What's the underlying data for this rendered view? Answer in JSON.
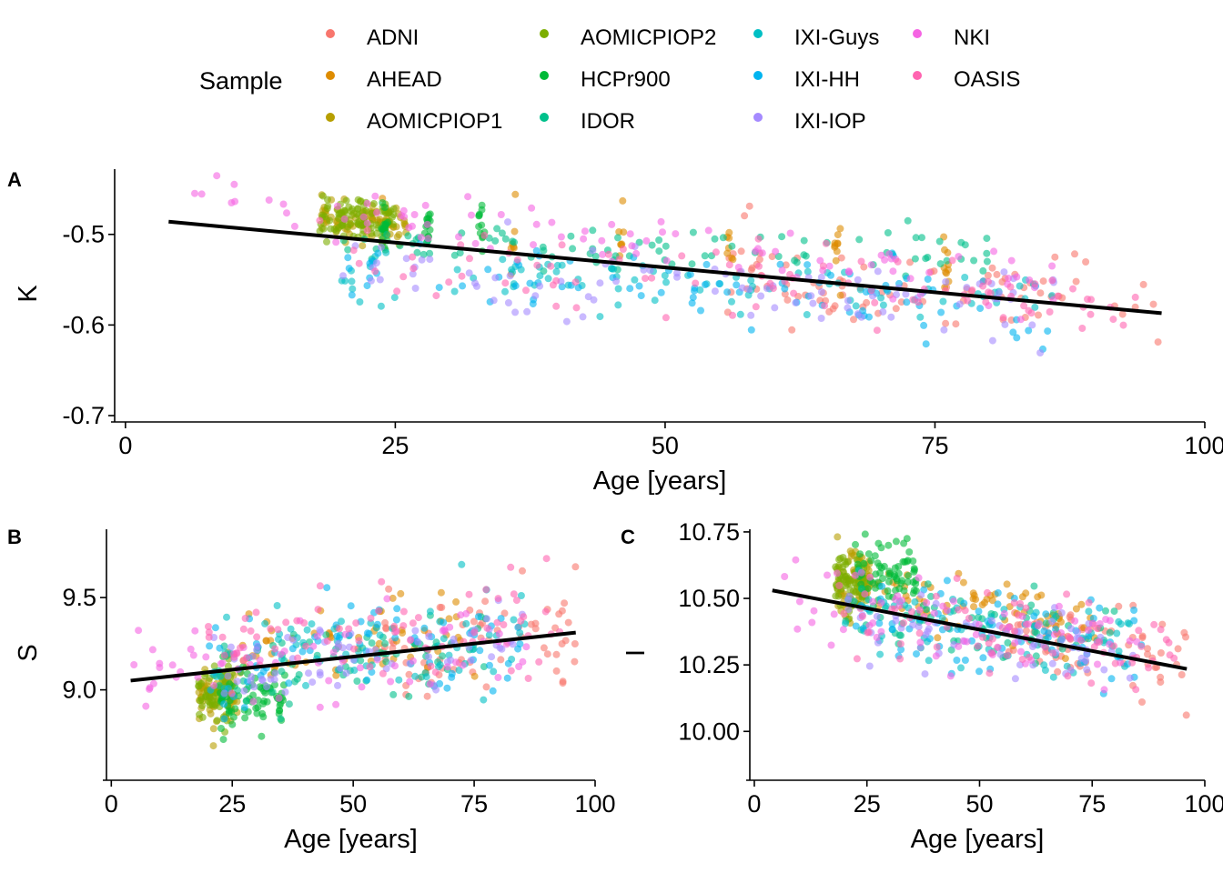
{
  "legend": {
    "title": "Sample",
    "entries": [
      {
        "name": "ADNI",
        "color": "#F8766D"
      },
      {
        "name": "AHEAD",
        "color": "#DE8C00"
      },
      {
        "name": "AOMICPIOP1",
        "color": "#B79F00"
      },
      {
        "name": "AOMICPIOP2",
        "color": "#7CAE00"
      },
      {
        "name": "HCPr900",
        "color": "#00BA38"
      },
      {
        "name": "IDOR",
        "color": "#00C08B"
      },
      {
        "name": "IXI-Guys",
        "color": "#00BFC4"
      },
      {
        "name": "IXI-HH",
        "color": "#00B4F0"
      },
      {
        "name": "IXI-IOP",
        "color": "#A58AFF"
      },
      {
        "name": "NKI",
        "color": "#F564E3"
      },
      {
        "name": "OASIS",
        "color": "#FF64B0"
      }
    ]
  },
  "chart_data": [
    {
      "panel": "A",
      "type": "scatter",
      "xlabel": "Age [years]",
      "ylabel": "K",
      "xlim": [
        -1,
        100
      ],
      "ylim": [
        -0.703,
        -0.428
      ],
      "x_ticks": [
        0,
        25,
        50,
        75,
        100
      ],
      "x_tick_labels": [
        "0",
        "25",
        "50",
        "75",
        "100"
      ],
      "y_ticks": [
        -0.5,
        -0.6,
        -0.7
      ],
      "y_tick_labels": [
        "-0.5",
        "-0.6",
        "-0.7"
      ],
      "trend": {
        "x": [
          4,
          96
        ],
        "y": [
          -0.486,
          -0.587
        ]
      },
      "series_ranges": [
        {
          "name": "ADNI",
          "age": [
            55,
            96
          ],
          "mean_at_start": -0.545,
          "mean_at_end": -0.575,
          "spread": 0.022
        },
        {
          "name": "AHEAD",
          "age": [
            24,
            76
          ],
          "mean_at_start": -0.49,
          "mean_at_end": -0.53,
          "spread": 0.02,
          "columns": [
            24,
            36,
            46,
            56,
            66,
            76
          ]
        },
        {
          "name": "AOMICPIOP1",
          "age": [
            18,
            26
          ],
          "mean_at_start": -0.48,
          "mean_at_end": -0.49,
          "spread": 0.012
        },
        {
          "name": "AOMICPIOP2",
          "age": [
            18,
            25
          ],
          "mean_at_start": -0.48,
          "mean_at_end": -0.485,
          "spread": 0.012
        },
        {
          "name": "HCPr900",
          "age": [
            22,
            36
          ],
          "mean_at_start": -0.49,
          "mean_at_end": -0.495,
          "spread": 0.012,
          "columns": [
            24,
            28,
            33
          ]
        },
        {
          "name": "IDOR",
          "age": [
            20,
            80
          ],
          "mean_at_start": -0.51,
          "mean_at_end": -0.52,
          "spread": 0.012
        },
        {
          "name": "IXI-Guys",
          "age": [
            20,
            86
          ],
          "mean_at_start": -0.54,
          "mean_at_end": -0.57,
          "spread": 0.018
        },
        {
          "name": "IXI-HH",
          "age": [
            20,
            86
          ],
          "mean_at_start": -0.54,
          "mean_at_end": -0.58,
          "spread": 0.022
        },
        {
          "name": "IXI-IOP",
          "age": [
            20,
            86
          ],
          "mean_at_start": -0.54,
          "mean_at_end": -0.575,
          "spread": 0.02
        },
        {
          "name": "NKI",
          "age": [
            4,
            86
          ],
          "mean_at_start": -0.46,
          "mean_at_end": -0.555,
          "spread": 0.015
        },
        {
          "name": "OASIS",
          "age": [
            18,
            94
          ],
          "mean_at_start": -0.525,
          "mean_at_end": -0.575,
          "spread": 0.02
        }
      ]
    },
    {
      "panel": "B",
      "type": "scatter",
      "xlabel": "Age [years]",
      "ylabel": "S",
      "xlim": [
        -1,
        100
      ],
      "ylim": [
        8.53,
        9.87
      ],
      "x_ticks": [
        0,
        25,
        50,
        75,
        100
      ],
      "x_tick_labels": [
        "0",
        "25",
        "50",
        "75",
        "100"
      ],
      "y_ticks": [
        9.5,
        9.0
      ],
      "y_tick_labels": [
        "9.5",
        "9.0"
      ],
      "trend": {
        "x": [
          4,
          96
        ],
        "y": [
          9.05,
          9.31
        ]
      },
      "series_ranges": [
        {
          "name": "ADNI",
          "age": [
            55,
            96
          ],
          "mean_at_start": 9.25,
          "mean_at_end": 9.35,
          "spread": 0.14
        },
        {
          "name": "AHEAD",
          "age": [
            24,
            76
          ],
          "mean_at_start": 9.2,
          "mean_at_end": 9.3,
          "spread": 0.1
        },
        {
          "name": "AOMICPIOP1",
          "age": [
            18,
            26
          ],
          "mean_at_start": 8.98,
          "mean_at_end": 9.0,
          "spread": 0.08
        },
        {
          "name": "AOMICPIOP2",
          "age": [
            18,
            25
          ],
          "mean_at_start": 8.95,
          "mean_at_end": 8.98,
          "spread": 0.08
        },
        {
          "name": "HCPr900",
          "age": [
            22,
            36
          ],
          "mean_at_start": 8.95,
          "mean_at_end": 8.97,
          "spread": 0.08
        },
        {
          "name": "IDOR",
          "age": [
            20,
            80
          ],
          "mean_at_start": 9.1,
          "mean_at_end": 9.25,
          "spread": 0.1
        },
        {
          "name": "IXI-Guys",
          "age": [
            20,
            86
          ],
          "mean_at_start": 9.15,
          "mean_at_end": 9.3,
          "spread": 0.12
        },
        {
          "name": "IXI-HH",
          "age": [
            20,
            86
          ],
          "mean_at_start": 9.15,
          "mean_at_end": 9.3,
          "spread": 0.15
        },
        {
          "name": "IXI-IOP",
          "age": [
            20,
            86
          ],
          "mean_at_start": 9.1,
          "mean_at_end": 9.25,
          "spread": 0.12
        },
        {
          "name": "NKI",
          "age": [
            4,
            86
          ],
          "mean_at_start": 9.05,
          "mean_at_end": 9.25,
          "spread": 0.14
        },
        {
          "name": "OASIS",
          "age": [
            18,
            94
          ],
          "mean_at_start": 9.3,
          "mean_at_end": 9.35,
          "spread": 0.14
        }
      ]
    },
    {
      "panel": "C",
      "type": "scatter",
      "xlabel": "Age [years]",
      "ylabel": "I",
      "xlim": [
        -1,
        100
      ],
      "ylim": [
        9.83,
        10.76
      ],
      "x_ticks": [
        0,
        25,
        50,
        75,
        100
      ],
      "x_tick_labels": [
        "0",
        "25",
        "50",
        "75",
        "100"
      ],
      "y_ticks": [
        10.75,
        10.5,
        10.25,
        10.0
      ],
      "y_tick_labels": [
        "10.75",
        "10.50",
        "10.25",
        "10.00"
      ],
      "trend": {
        "x": [
          4,
          96
        ],
        "y": [
          10.53,
          10.235
        ]
      },
      "series_ranges": [
        {
          "name": "ADNI",
          "age": [
            55,
            96
          ],
          "mean_at_start": 10.35,
          "mean_at_end": 10.25,
          "spread": 0.08
        },
        {
          "name": "AHEAD",
          "age": [
            24,
            76
          ],
          "mean_at_start": 10.55,
          "mean_at_end": 10.4,
          "spread": 0.06
        },
        {
          "name": "AOMICPIOP1",
          "age": [
            18,
            26
          ],
          "mean_at_start": 10.55,
          "mean_at_end": 10.55,
          "spread": 0.06
        },
        {
          "name": "AOMICPIOP2",
          "age": [
            18,
            25
          ],
          "mean_at_start": 10.55,
          "mean_at_end": 10.55,
          "spread": 0.06
        },
        {
          "name": "HCPr900",
          "age": [
            22,
            36
          ],
          "mean_at_start": 10.6,
          "mean_at_end": 10.6,
          "spread": 0.05
        },
        {
          "name": "IDOR",
          "age": [
            20,
            80
          ],
          "mean_at_start": 10.45,
          "mean_at_end": 10.35,
          "spread": 0.06
        },
        {
          "name": "IXI-Guys",
          "age": [
            20,
            86
          ],
          "mean_at_start": 10.45,
          "mean_at_end": 10.3,
          "spread": 0.07
        },
        {
          "name": "IXI-HH",
          "age": [
            20,
            86
          ],
          "mean_at_start": 10.45,
          "mean_at_end": 10.3,
          "spread": 0.09
        },
        {
          "name": "IXI-IOP",
          "age": [
            20,
            86
          ],
          "mean_at_start": 10.42,
          "mean_at_end": 10.3,
          "spread": 0.08
        },
        {
          "name": "NKI",
          "age": [
            4,
            86
          ],
          "mean_at_start": 10.52,
          "mean_at_end": 10.3,
          "spread": 0.08
        },
        {
          "name": "OASIS",
          "age": [
            18,
            94
          ],
          "mean_at_start": 10.45,
          "mean_at_end": 10.28,
          "spread": 0.07
        }
      ]
    }
  ],
  "panel_tags": [
    "A",
    "B",
    "C"
  ]
}
